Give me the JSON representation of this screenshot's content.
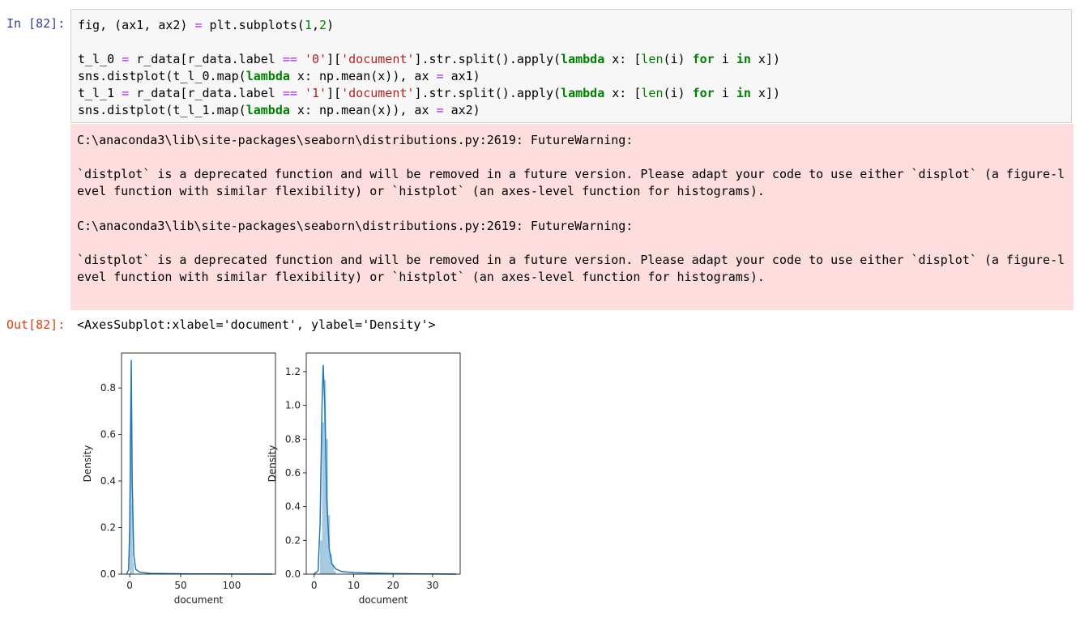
{
  "input_prompt": "In [82]:",
  "output_prompt": "Out[82]:",
  "output_repr": "<AxesSubplot:xlabel='document', ylabel='Density'>",
  "warnings": [
    {
      "path": "C:\\anaconda3\\lib\\site-packages\\seaborn\\distributions.py:2619: FutureWarning:",
      "msg1": "`distplot` is a deprecated function and will be removed in a future version. Please adapt your code to use either `displot` (a figure-l",
      "msg2": "evel function with similar flexibility) or `histplot` (an axes-level function for histograms)."
    },
    {
      "path": "C:\\anaconda3\\lib\\site-packages\\seaborn\\distributions.py:2619: FutureWarning:",
      "msg1": "`distplot` is a deprecated function and will be removed in a future version. Please adapt your code to use either `displot` (a figure-l",
      "msg2": "evel function with similar flexibility) or `histplot` (an axes-level function for histograms)."
    }
  ],
  "code": {
    "l1_a": "fig, (ax1, ax2) ",
    "l1_op": "=",
    "l1_b": " plt.subplots(",
    "l1_n1": "1",
    "l1_c": ",",
    "l1_n2": "2",
    "l1_d": ")",
    "l2_a": "t_l_0 ",
    "l2_op": "=",
    "l2_b": " r_data[r_data.label ",
    "l2_op2": "==",
    "l2_s1": "'0'",
    "l2_c": "][",
    "l2_s2": "'document'",
    "l2_d": "].str.split().apply(",
    "l2_kw1": "lambda",
    "l2_e": " x: [",
    "l2_bi": "len",
    "l2_f": "(i) ",
    "l2_kw2": "for",
    "l2_g": " i ",
    "l2_kw3": "in",
    "l2_h": " x])",
    "l3_a": "sns.distplot(t_l_0.map(",
    "l3_kw": "lambda",
    "l3_b": " x: np.mean(x)), ax ",
    "l3_op": "=",
    "l3_c": " ax1)",
    "l4_a": "t_l_1 ",
    "l4_op": "=",
    "l4_b": " r_data[r_data.label ",
    "l4_op2": "==",
    "l4_s1": "'1'",
    "l4_c": "][",
    "l4_s2": "'document'",
    "l4_d": "].str.split().apply(",
    "l4_kw1": "lambda",
    "l4_e": " x: [",
    "l4_bi": "len",
    "l4_f": "(i) ",
    "l4_kw2": "for",
    "l4_g": " i ",
    "l4_kw3": "in",
    "l4_h": " x])",
    "l5_a": "sns.distplot(t_l_1.map(",
    "l5_kw": "lambda",
    "l5_b": " x: np.mean(x)), ax ",
    "l5_op": "=",
    "l5_c": " ax2)"
  },
  "chart_data": [
    {
      "type": "area",
      "xlabel": "document",
      "ylabel": "Density",
      "xlim": [
        -8,
        143
      ],
      "ylim": [
        0,
        0.95
      ],
      "xticks": [
        0,
        50,
        100
      ],
      "xtick_labels": [
        "0",
        "50",
        "100"
      ],
      "yticks": [
        0.0,
        0.2,
        0.4,
        0.6,
        0.8
      ],
      "ytick_labels": [
        "0.0",
        "0.2",
        "0.4",
        "0.6",
        "0.8"
      ],
      "kde": {
        "x": [
          -3,
          -1,
          0,
          0.8,
          1.5,
          2.5,
          4,
          6,
          10,
          20,
          60,
          140
        ],
        "y": [
          0,
          0.02,
          0.2,
          0.6,
          0.92,
          0.4,
          0.08,
          0.02,
          0.008,
          0.003,
          0.001,
          0
        ]
      },
      "hist": {
        "x": [
          0,
          1,
          2,
          3
        ],
        "width": 1,
        "y": [
          0.6,
          0.9,
          0.3,
          0.05
        ]
      },
      "color": "#1f77b4"
    },
    {
      "type": "area",
      "xlabel": "document",
      "ylabel": "Density",
      "xlim": [
        -2,
        37
      ],
      "ylim": [
        0,
        1.31
      ],
      "xticks": [
        0,
        10,
        20,
        30
      ],
      "xtick_labels": [
        "0",
        "10",
        "20",
        "30"
      ],
      "yticks": [
        0.0,
        0.2,
        0.4,
        0.6,
        0.8,
        1.0,
        1.2
      ],
      "ytick_labels": [
        "0.0",
        "0.2",
        "0.4",
        "0.6",
        "0.8",
        "1.0",
        "1.2"
      ],
      "kde": {
        "x": [
          0,
          1,
          1.5,
          2,
          2.3,
          2.7,
          3.2,
          3.8,
          4.5,
          5.5,
          7,
          10,
          20,
          36
        ],
        "y": [
          0,
          0.02,
          0.3,
          1.0,
          1.24,
          1.0,
          0.45,
          0.15,
          0.06,
          0.03,
          0.015,
          0.008,
          0.003,
          0
        ]
      },
      "hist": {
        "x": [
          1.5,
          2,
          2.5,
          3,
          3.5,
          4,
          4.5,
          5
        ],
        "width": 0.5,
        "y": [
          0.2,
          0.9,
          1.15,
          0.8,
          0.35,
          0.12,
          0.05,
          0.02
        ]
      },
      "color": "#1f77b4"
    }
  ]
}
